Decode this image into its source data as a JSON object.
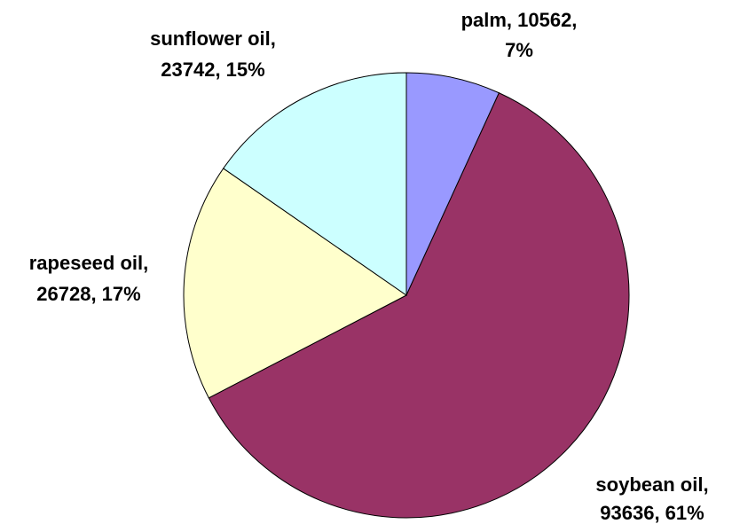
{
  "chart_data": {
    "type": "pie",
    "values": [
      10562,
      93636,
      26728,
      23742
    ],
    "value_labels": [
      [
        "palm, 10562,",
        "7%"
      ],
      [
        "soybean oil,",
        "93636, 61%"
      ],
      [
        "rapeseed oil,",
        "26728, 17%"
      ],
      [
        "sunflower oil,",
        "23742, 15%"
      ]
    ],
    "colors": [
      "#9999ff",
      "#993366",
      "#ffffcc",
      "#ccffff"
    ]
  }
}
